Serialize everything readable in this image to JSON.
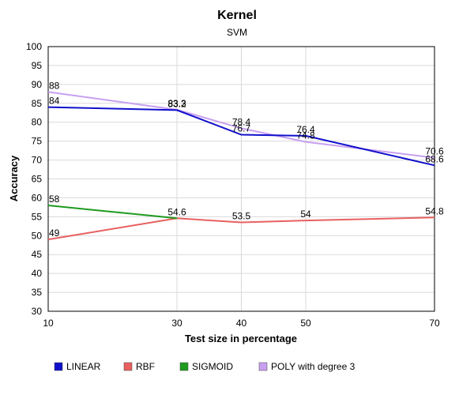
{
  "chart_data": {
    "type": "line",
    "title": "Kernel",
    "subtitle": "SVM",
    "xlabel": "Test size  in percentage",
    "ylabel": "Accuracy",
    "x": [
      10,
      30,
      40,
      50,
      70
    ],
    "ylim": [
      30,
      100
    ],
    "yticks": [
      30,
      35,
      40,
      45,
      50,
      55,
      60,
      65,
      70,
      75,
      80,
      85,
      90,
      95,
      100
    ],
    "grid": true,
    "legend_position": "bottom",
    "series": [
      {
        "name": "LINEAR",
        "color": "#1010cc",
        "values": [
          84,
          83.2,
          76.7,
          76.4,
          68.6
        ],
        "labels": [
          "84",
          "83.2",
          "76.7",
          "76.4",
          "68.6"
        ]
      },
      {
        "name": "RBF",
        "color": "#e86060",
        "values": [
          49,
          54.6,
          53.5,
          54,
          54.8
        ],
        "labels": [
          "49",
          "54.6",
          "53.5",
          "54",
          "54.8"
        ]
      },
      {
        "name": "SIGMOID",
        "color": "#1e9a1e",
        "values": [
          58,
          54.6,
          null,
          null,
          null
        ],
        "labels": [
          "58",
          "",
          "",
          "",
          ""
        ]
      },
      {
        "name": "POLY with degree 3",
        "color": "#c8a0f0",
        "values": [
          88,
          83.3,
          78.4,
          74.8,
          70.6
        ],
        "labels": [
          "88",
          "83.3",
          "78.4",
          "74.8",
          "70.6"
        ]
      }
    ]
  }
}
